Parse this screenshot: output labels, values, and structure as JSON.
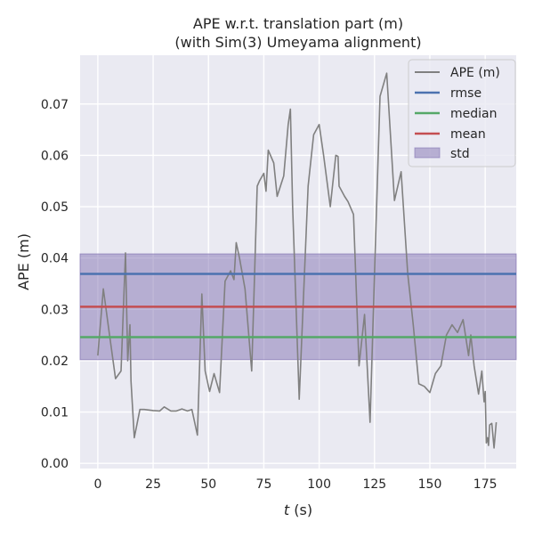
{
  "chart_data": {
    "type": "line",
    "title": "APE w.r.t. translation part (m)",
    "subtitle": "(with Sim(3) Umeyama alignment)",
    "xlabel_var": "t",
    "xlabel_unit": " (s)",
    "ylabel": "APE (m)",
    "xlim": [
      -8,
      189
    ],
    "ylim": [
      -0.001,
      0.0795
    ],
    "xticks": [
      0,
      25,
      50,
      75,
      100,
      125,
      150,
      175
    ],
    "yticks": [
      0.0,
      0.01,
      0.02,
      0.03,
      0.04,
      0.05,
      0.06,
      0.07
    ],
    "ytick_labels": [
      "0.00",
      "0.01",
      "0.02",
      "0.03",
      "0.04",
      "0.05",
      "0.06",
      "0.07"
    ],
    "grid": true,
    "legend_position": "top-right",
    "colors": {
      "background": "#eaeaf2",
      "grid": "#ffffff",
      "ape": "#808080",
      "rmse": "#4c72b0",
      "median": "#55a868",
      "mean": "#c44e52",
      "std_fill": "#8172b2"
    },
    "legend": {
      "ape": "APE (m)",
      "rmse": "rmse",
      "median": "median",
      "mean": "mean",
      "std": "std"
    },
    "stats": {
      "rmse": 0.0369,
      "median": 0.0246,
      "mean": 0.0305,
      "std_low": 0.0202,
      "std_high": 0.0408
    },
    "series": [
      {
        "name": "APE (m)",
        "x": [
          0,
          2.5,
          5,
          8,
          10.5,
          12.5,
          13.5,
          14.5,
          15,
          16.5,
          19,
          21,
          25,
          28,
          30,
          33,
          35.5,
          38,
          40.5,
          42.5,
          45,
          47,
          48.5,
          50.5,
          52.5,
          55,
          57.5,
          60,
          61.5,
          62.5,
          64,
          66.5,
          69.5,
          72,
          73,
          75,
          76,
          77,
          79.5,
          81,
          84,
          86,
          87,
          88,
          91,
          95,
          97.5,
          100,
          102,
          105,
          107.5,
          108.5,
          109,
          111.5,
          113,
          115.5,
          118,
          120.5,
          123,
          125,
          127.5,
          130.5,
          134,
          137,
          140,
          142.5,
          145,
          147.5,
          150,
          152.5,
          155,
          157.5,
          160,
          162.5,
          165,
          167.5,
          168.5,
          170,
          172,
          173.5,
          174.5,
          175,
          175.5,
          176,
          176.5,
          177,
          178,
          179,
          180
        ],
        "y": [
          0.021,
          0.034,
          0.026,
          0.0165,
          0.018,
          0.041,
          0.02,
          0.027,
          0.016,
          0.005,
          0.0105,
          0.0105,
          0.0103,
          0.0102,
          0.011,
          0.0102,
          0.0102,
          0.0106,
          0.0102,
          0.0105,
          0.0055,
          0.033,
          0.018,
          0.014,
          0.0175,
          0.0138,
          0.0355,
          0.0375,
          0.0358,
          0.043,
          0.04,
          0.034,
          0.018,
          0.054,
          0.055,
          0.0565,
          0.053,
          0.061,
          0.0585,
          0.052,
          0.056,
          0.066,
          0.069,
          0.05,
          0.0125,
          0.054,
          0.064,
          0.066,
          0.06,
          0.05,
          0.06,
          0.0598,
          0.054,
          0.052,
          0.051,
          0.0485,
          0.019,
          0.029,
          0.008,
          0.037,
          0.0715,
          0.076,
          0.0512,
          0.0568,
          0.037,
          0.027,
          0.0155,
          0.015,
          0.0138,
          0.0175,
          0.019,
          0.025,
          0.027,
          0.0255,
          0.028,
          0.021,
          0.025,
          0.019,
          0.0135,
          0.018,
          0.012,
          0.014,
          0.004,
          0.005,
          0.0035,
          0.0075,
          0.0078,
          0.003,
          0.008
        ]
      }
    ]
  }
}
